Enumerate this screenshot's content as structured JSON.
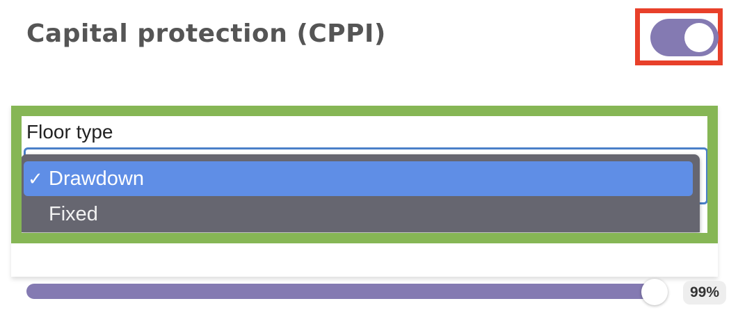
{
  "header": {
    "title": "Capital protection (CPPI)"
  },
  "toggle": {
    "state": "on",
    "color": "#847ab2"
  },
  "floor_type": {
    "label": "Floor type",
    "options": [
      {
        "label": "Drawdown",
        "selected": true,
        "checkmark": "✓"
      },
      {
        "label": "Fixed",
        "selected": false
      }
    ]
  },
  "slider": {
    "value": 99,
    "value_label": "99%"
  },
  "colors": {
    "toggle_highlight": "#e8402a",
    "select_highlight": "#86b655",
    "accent": "#847ab2",
    "selected_option": "#5f8ee6"
  }
}
